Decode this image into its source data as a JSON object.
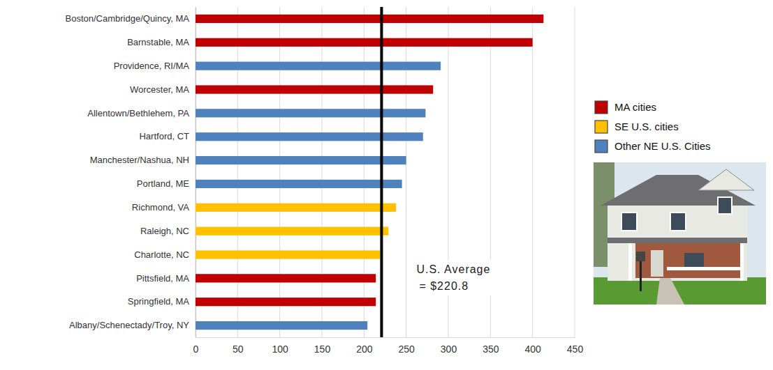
{
  "chart_data": {
    "type": "bar",
    "orientation": "horizontal",
    "grid": true,
    "legend": "right",
    "categories": [
      "Boston/Cambridge/Quincy, MA",
      "Barnstable, MA",
      "Providence, RI/MA",
      "Worcester, MA",
      "Allentown/Bethlehem, PA",
      "Hartford, CT",
      "Manchester/Nashua, NH",
      "Portland, ME",
      "Richmond, VA",
      "Raleigh, NC",
      "Charlotte, NC",
      "Pittsfield, MA",
      "Springfield, MA",
      "Albany/Schenectady/Troy, NY"
    ],
    "series": [
      {
        "name": "MA cities",
        "color": "#c00000",
        "values": [
          413,
          400,
          null,
          282,
          null,
          null,
          null,
          null,
          null,
          null,
          null,
          214,
          214,
          null
        ]
      },
      {
        "name": "SE U.S. cities",
        "color": "#ffc000",
        "values": [
          null,
          null,
          null,
          null,
          null,
          null,
          null,
          null,
          238,
          229,
          219,
          null,
          null,
          null
        ]
      },
      {
        "name": "Other NE U.S. Cities",
        "color": "#4f81bd",
        "values": [
          null,
          null,
          291,
          null,
          273,
          270,
          250,
          245,
          null,
          null,
          null,
          null,
          null,
          204
        ]
      }
    ],
    "xlim": [
      0,
      450
    ],
    "xticks": [
      0,
      50,
      100,
      150,
      200,
      250,
      300,
      350,
      400,
      450
    ],
    "annotations": [
      {
        "value": 220.8,
        "text": [
          "U.S. Average",
          "= $220.8"
        ]
      }
    ]
  }
}
